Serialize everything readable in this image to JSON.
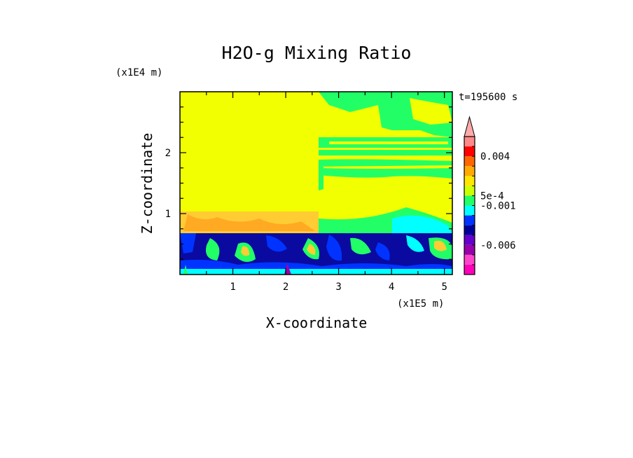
{
  "chart_data": {
    "type": "heatmap",
    "title": "H2O-g Mixing Ratio",
    "xlabel": "X-coordinate",
    "ylabel": "Z-coordinate",
    "x_unit": "(x1E5 m)",
    "y_unit": "(x1E4 m)",
    "time_label": "t=195600 s",
    "xlim": [
      0,
      5.15
    ],
    "ylim": [
      0,
      3
    ],
    "x_ticks": [
      "1",
      "2",
      "3",
      "4",
      "5"
    ],
    "y_ticks": [
      "1",
      "2"
    ],
    "colorbar": {
      "colors": [
        "#ff00bb",
        "#ff44cc",
        "#9900aa",
        "#6600cc",
        "#000099",
        "#0033ff",
        "#00ffff",
        "#22ff66",
        "#ccff00",
        "#ffe600",
        "#ffaa00",
        "#ff6600",
        "#ff0000",
        "#ff8888"
      ],
      "extend": "max",
      "labels": [
        "-0.006",
        "-0.001",
        "5e-4",
        "0.004"
      ],
      "label_values": [
        -0.006,
        -0.001,
        0.0005,
        0.004
      ]
    }
  }
}
